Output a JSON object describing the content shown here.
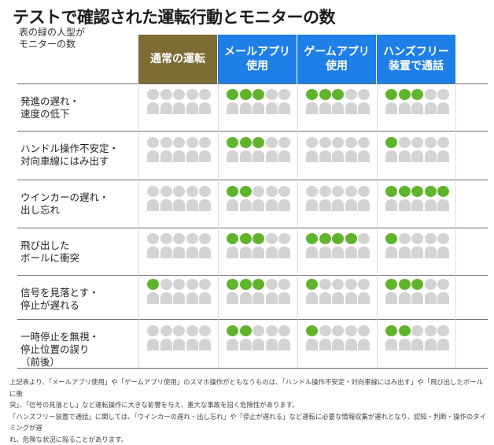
{
  "title": "テストで確認された運転行動とモニターの数",
  "legend_note": "表の緑の人型が\nモニターの数",
  "colors": {
    "normal_header": "#7e6c35",
    "app_header": "#1e7fe6",
    "highlight": "#5fb42c",
    "inactive": "#d3d3d3",
    "cell_bg": "#ffffff"
  },
  "icons": {
    "person": "person-icon"
  },
  "footnote": "上記表より、「メールアプリ使用」や「ゲームアプリ使用」のスマホ操作がともなうものは、「ハンドル操作不安定・対向車線にはみ出す」や「飛び出したボールに衝\n突」、「信号の見落とし」など運転操作に大きな影響を与え、重大な事故を招く危険性があります。\n「ハンズフリー装置で通話」に関しては、「ウインカーの遅れ・出し忘れ」や「停止が遅れる」など運転に必要な情報収集が遅れとなり、認知・判断・操作のタイミングが遅\nれ、危険な状況に陥ることがあります。",
  "chart_data": {
    "type": "table",
    "title": "テストで確認された運転行動とモニターの数",
    "value_meaning": "表の緑の人型がモニターの数",
    "total_monitors": 10,
    "columns": [
      {
        "label": "通常の運転",
        "kind": "normal"
      },
      {
        "label": "メールアプリ\n使用",
        "kind": "app"
      },
      {
        "label": "ゲームアプリ\n使用",
        "kind": "app"
      },
      {
        "label": "ハンズフリー\n装置で通話",
        "kind": "app"
      }
    ],
    "rows": [
      {
        "label": "発進の遅れ・\n速度の低下",
        "values": [
          0,
          3,
          3,
          3
        ]
      },
      {
        "label": "ハンドル操作不安定・\n対向車線にはみ出す",
        "values": [
          0,
          3,
          0,
          1
        ]
      },
      {
        "label": "ウインカーの遅れ・\n出し忘れ",
        "values": [
          0,
          2,
          0,
          5
        ]
      },
      {
        "label": "飛び出した\nボールに衝突",
        "values": [
          0,
          3,
          4,
          1
        ]
      },
      {
        "label": "信号を見落とす・\n停止が遅れる",
        "values": [
          1,
          3,
          1,
          3
        ]
      },
      {
        "label": "一時停止を無視・\n停止位置の誤り\n（前後）",
        "values": [
          0,
          2,
          1,
          2
        ]
      }
    ]
  }
}
